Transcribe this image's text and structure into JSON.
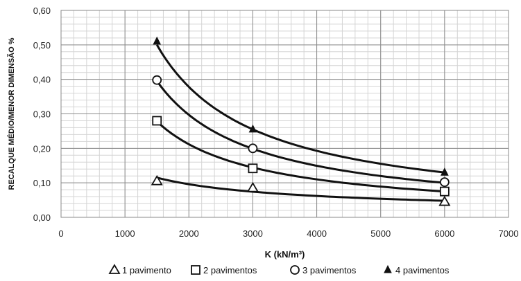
{
  "chart_data": {
    "type": "scatter",
    "xlabel": "K (kN/m³)",
    "ylabel": "RECALQUE MÉDIO/MENOR DIMENSÃO %",
    "xlim": [
      0,
      7000
    ],
    "ylim": [
      0,
      0.6
    ],
    "x_ticks": [
      "0",
      "1000",
      "2000",
      "3000",
      "4000",
      "5000",
      "6000",
      "7000"
    ],
    "y_ticks": [
      "0,00",
      "0,10",
      "0,20",
      "0,30",
      "0,40",
      "0,50",
      "0,60"
    ],
    "grid": true,
    "legend_position": "bottom",
    "series": [
      {
        "name": "1 pavimento",
        "marker": "triangle-open",
        "x": [
          1500,
          3000,
          6000
        ],
        "y": [
          0.105,
          0.085,
          0.045
        ],
        "trend_y": [
          0.115,
          0.078,
          0.048
        ]
      },
      {
        "name": "2 pavimentos",
        "marker": "square-open",
        "x": [
          1500,
          3000,
          6000
        ],
        "y": [
          0.28,
          0.142,
          0.075
        ],
        "trend_y": [
          0.278,
          0.145,
          0.075
        ]
      },
      {
        "name": "3 pavimentos",
        "marker": "circle-open",
        "x": [
          1500,
          3000,
          6000
        ],
        "y": [
          0.398,
          0.2,
          0.102
        ],
        "trend_y": [
          0.395,
          0.205,
          0.1
        ]
      },
      {
        "name": "4 pavimentos",
        "marker": "triangle-filled",
        "x": [
          1500,
          3000,
          6000
        ],
        "y": [
          0.51,
          0.255,
          0.13
        ],
        "trend_y": [
          0.5,
          0.255,
          0.13
        ]
      }
    ]
  }
}
